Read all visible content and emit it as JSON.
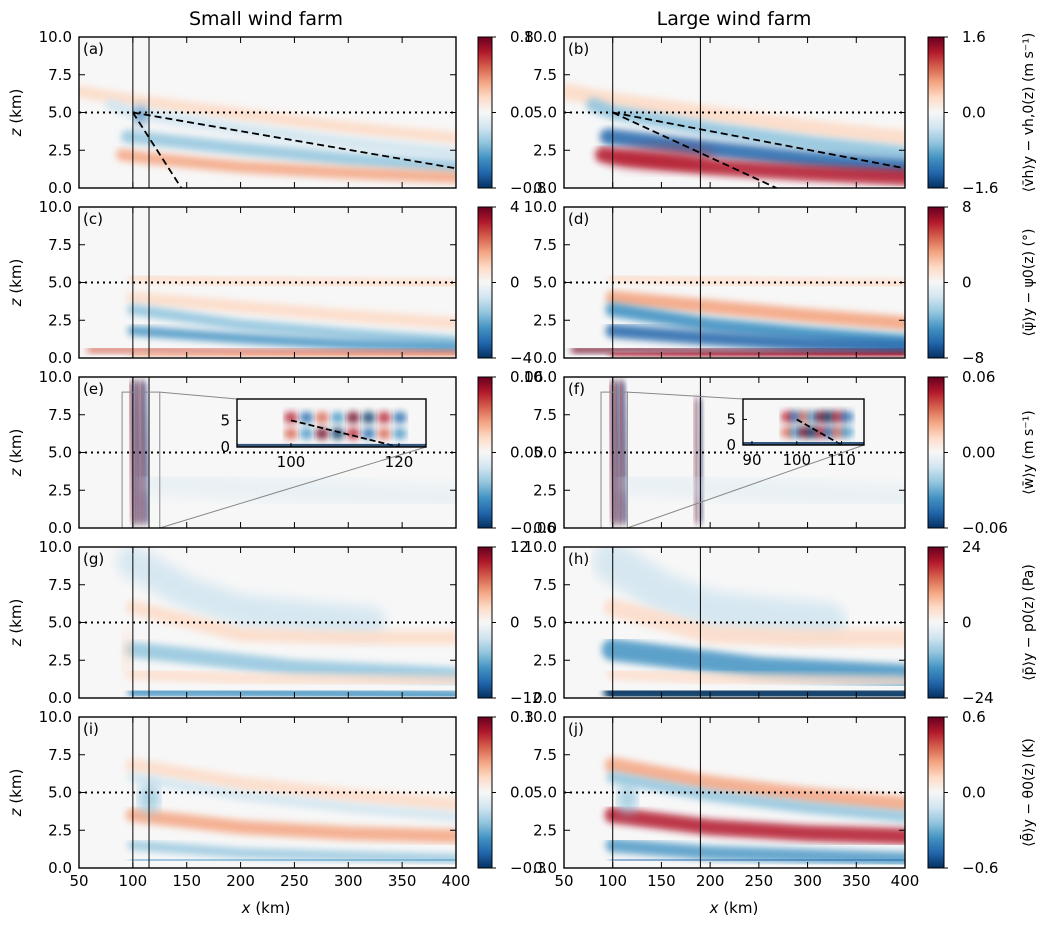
{
  "figure": {
    "column_titles": [
      "Small wind farm",
      "Large wind farm"
    ],
    "xlabel": "x (km)",
    "ylabel": "z (km)"
  },
  "chart_data": {
    "type": "heatmap",
    "colormap": "RdBu_r",
    "grid": false,
    "xlim": [
      50,
      400
    ],
    "ylim": [
      0,
      10
    ],
    "x_ticks": [
      "50",
      "100",
      "150",
      "200",
      "250",
      "300",
      "350",
      "400"
    ],
    "y_ticks": [
      "0.0",
      "2.5",
      "5.0",
      "7.5",
      "10.0"
    ],
    "reference_height_z": 5.0,
    "farms": {
      "small": {
        "x_start": 100,
        "x_end": 115
      },
      "large": {
        "x_start": 100,
        "x_end": 190
      }
    },
    "rows": [
      {
        "quantity": "horizontal velocity",
        "colorbar_label": "⟨v̄h⟩y − vh,0(z) (m s⁻¹)",
        "colorbar_ticks": [
          [
            "0.8",
            "0.0",
            "−0.8"
          ],
          [
            "1.6",
            "0.0",
            "−1.6"
          ]
        ],
        "panels": [
          {
            "label": "(a)",
            "dashed_lines": [
              [
                [
                  100,
                  5.0
                ],
                [
                  400,
                  1.3
                ]
              ],
              [
                [
                  100,
                  5.0
                ],
                [
                  145,
                  0.0
                ]
              ]
            ]
          },
          {
            "label": "(b)",
            "dashed_lines": [
              [
                [
                  100,
                  5.0
                ],
                [
                  400,
                  1.3
                ]
              ],
              [
                [
                  100,
                  5.0
                ],
                [
                  268,
                  0.0
                ]
              ]
            ]
          }
        ]
      },
      {
        "quantity": "wind direction",
        "colorbar_label": "⟨ψ̄⟩y − ψ0(z) (°)",
        "colorbar_ticks": [
          [
            "4",
            "0",
            "−4"
          ],
          [
            "8",
            "0",
            "−8"
          ]
        ],
        "panels": [
          {
            "label": "(c)"
          },
          {
            "label": "(d)"
          }
        ]
      },
      {
        "quantity": "vertical velocity",
        "colorbar_label": "⟨w̄⟩y (m s⁻¹)",
        "colorbar_ticks": [
          [
            "0.06",
            "0.00",
            "−0.06"
          ],
          [
            "0.06",
            "0.00",
            "−0.06"
          ]
        ],
        "panels": [
          {
            "label": "(e)",
            "inset": {
              "xlim": [
                90,
                125
              ],
              "ylim": [
                0,
                9
              ],
              "xticks": [
                "100",
                "120"
              ],
              "yticks": [
                "0",
                "5"
              ]
            }
          },
          {
            "label": "(f)",
            "inset": {
              "xlim": [
                88,
                115
              ],
              "ylim": [
                0,
                9
              ],
              "xticks": [
                "90",
                "100",
                "110"
              ],
              "yticks": [
                "0",
                "5"
              ]
            }
          }
        ]
      },
      {
        "quantity": "pressure",
        "colorbar_label": "⟨p̄⟩y − p0(z) (Pa)",
        "colorbar_ticks": [
          [
            "12",
            "0",
            "−12"
          ],
          [
            "24",
            "0",
            "−24"
          ]
        ],
        "panels": [
          {
            "label": "(g)"
          },
          {
            "label": "(h)"
          }
        ]
      },
      {
        "quantity": "potential temperature",
        "colorbar_label": "⟨θ̄⟩y − θ0(z) (K)",
        "colorbar_ticks": [
          [
            "0.3",
            "0.0",
            "−0.3"
          ],
          [
            "0.6",
            "0.0",
            "−0.6"
          ]
        ],
        "panels": [
          {
            "label": "(i)"
          },
          {
            "label": "(j)"
          }
        ]
      }
    ]
  }
}
